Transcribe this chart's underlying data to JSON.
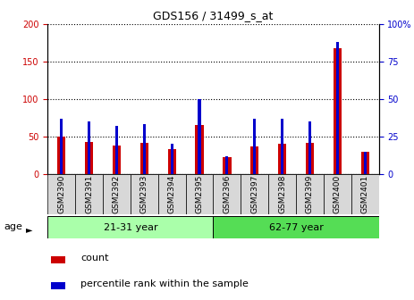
{
  "title": "GDS156 / 31499_s_at",
  "samples": [
    "GSM2390",
    "GSM2391",
    "GSM2392",
    "GSM2393",
    "GSM2394",
    "GSM2395",
    "GSM2396",
    "GSM2397",
    "GSM2398",
    "GSM2399",
    "GSM2400",
    "GSM2401"
  ],
  "count_values": [
    50,
    43,
    38,
    41,
    33,
    65,
    23,
    37,
    40,
    42,
    168,
    30
  ],
  "percentile_values": [
    37,
    35,
    32,
    33,
    20,
    50,
    12,
    37,
    37,
    35,
    88,
    15
  ],
  "groups": [
    {
      "label": "21-31 year",
      "start": 0,
      "end": 5
    },
    {
      "label": "62-77 year",
      "start": 6,
      "end": 11
    }
  ],
  "ylim_left": [
    0,
    200
  ],
  "ylim_right": [
    0,
    100
  ],
  "yticks_left": [
    0,
    50,
    100,
    150,
    200
  ],
  "yticks_right": [
    0,
    25,
    50,
    75,
    100
  ],
  "ytick_labels_right": [
    "0",
    "25",
    "50",
    "75",
    "100%"
  ],
  "left_color": "#CC0000",
  "right_color": "#0000CC",
  "red_bar_width": 0.3,
  "blue_bar_width": 0.1,
  "background_color": "#ffffff",
  "grid_color": "black",
  "legend_count_label": "count",
  "legend_percentile_label": "percentile rank within the sample",
  "age_label": "age",
  "group_bg_color_1": "#aaffaa",
  "group_bg_color_2": "#55dd55",
  "xtick_box_color": "#d8d8d8",
  "title_fontsize": 9,
  "tick_fontsize": 7,
  "legend_fontsize": 8,
  "group_fontsize": 8
}
